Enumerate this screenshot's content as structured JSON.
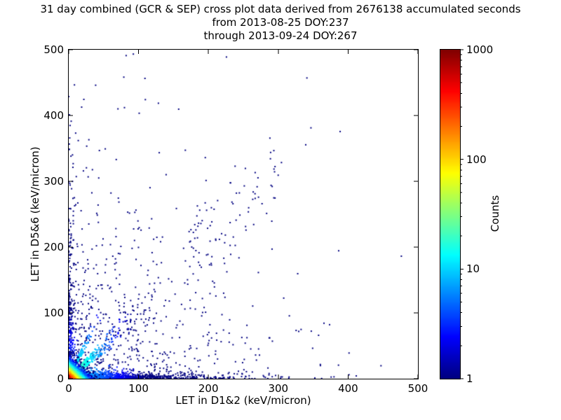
{
  "title": {
    "line1": "31 day combined (GCR & SEP) cross plot data derived from 2676138 accumulated seconds",
    "line2": "from 2013-08-25 DOY:237",
    "line3": "through 2013-09-24 DOY:267"
  },
  "chart_data": {
    "type": "scatter",
    "title": "31 day combined (GCR & SEP) cross plot data derived from 2676138 accumulated seconds",
    "subtitle_from": "from 2013-08-25 DOY:237",
    "subtitle_through": "through 2013-09-24 DOY:267",
    "accumulated_seconds": 2676138,
    "start_date": "2013-08-25",
    "start_doy": 237,
    "end_date": "2013-09-24",
    "end_doy": 267,
    "xlabel": "LET in D1&2 (keV/micron)",
    "ylabel": "LET in D5&6 (keV/micron)",
    "xlim": [
      0,
      500
    ],
    "ylim": [
      0,
      500
    ],
    "x_ticks": [
      0,
      100,
      200,
      300,
      400,
      500
    ],
    "y_ticks": [
      0,
      100,
      200,
      300,
      400,
      500
    ],
    "grid": false,
    "background": "#ffffff",
    "marker_size_px": 2,
    "colorbar": {
      "label": "Counts",
      "scale": "log",
      "min": 1,
      "max": 1000,
      "ticks": [
        1,
        10,
        100,
        1000
      ],
      "colormap": "jet",
      "low_color": "#000080",
      "high_color": "#800000"
    },
    "point_clusters": [
      {
        "name": "sparse-field",
        "kind": "xy",
        "n": 650,
        "x": {
          "type": "exp",
          "scale": 100,
          "max": 495
        },
        "y": {
          "type": "exp",
          "scale": 110,
          "max": 495
        },
        "count": {
          "on": "x",
          "base": 1,
          "decay": 1
        }
      },
      {
        "name": "mid-diagonal-cluster",
        "kind": "diag",
        "n": 80,
        "x": {
          "type": "uniform",
          "min": 160,
          "max": 300
        },
        "slope": [
          0.8,
          1.3
        ],
        "count": {
          "on": "x",
          "base": 1,
          "decay": 1
        }
      },
      {
        "name": "left-vertical-band",
        "kind": "xy",
        "n": 350,
        "x": {
          "type": "exp",
          "scale": 3,
          "max": 20
        },
        "y": {
          "type": "exp",
          "scale": 90,
          "max": 495
        },
        "count": {
          "on": "y",
          "base": 6,
          "decay": 60
        }
      },
      {
        "name": "bottom-horizontal-band",
        "kind": "xy",
        "n": 1500,
        "x": {
          "type": "exp",
          "scale": 60,
          "max": 480
        },
        "y": {
          "type": "exp",
          "scale": 3.5,
          "max": 25
        },
        "count": {
          "on": "x",
          "base": 15,
          "decay": 40
        }
      },
      {
        "name": "steep-diagonal-band",
        "kind": "diag",
        "n": 250,
        "x": {
          "type": "exp",
          "scale": 12,
          "max": 60
        },
        "slope": [
          1.9,
          2.5
        ],
        "count": {
          "on": "y",
          "base": 25,
          "decay": 40
        }
      },
      {
        "name": "main-diagonal-band",
        "kind": "diag",
        "n": 500,
        "x": {
          "type": "exp",
          "scale": 25,
          "max": 120
        },
        "slope": [
          0.75,
          1.25
        ],
        "count": {
          "on": "x",
          "base": 40,
          "decay": 25
        }
      },
      {
        "name": "origin-hot-core",
        "kind": "xy",
        "n": 3500,
        "x": {
          "type": "exp",
          "scale": 6,
          "max": 60
        },
        "y": {
          "type": "exp",
          "scale": 6,
          "max": 60
        },
        "count": {
          "on": "sum",
          "base": 1000,
          "decay": 5.5
        }
      }
    ]
  }
}
